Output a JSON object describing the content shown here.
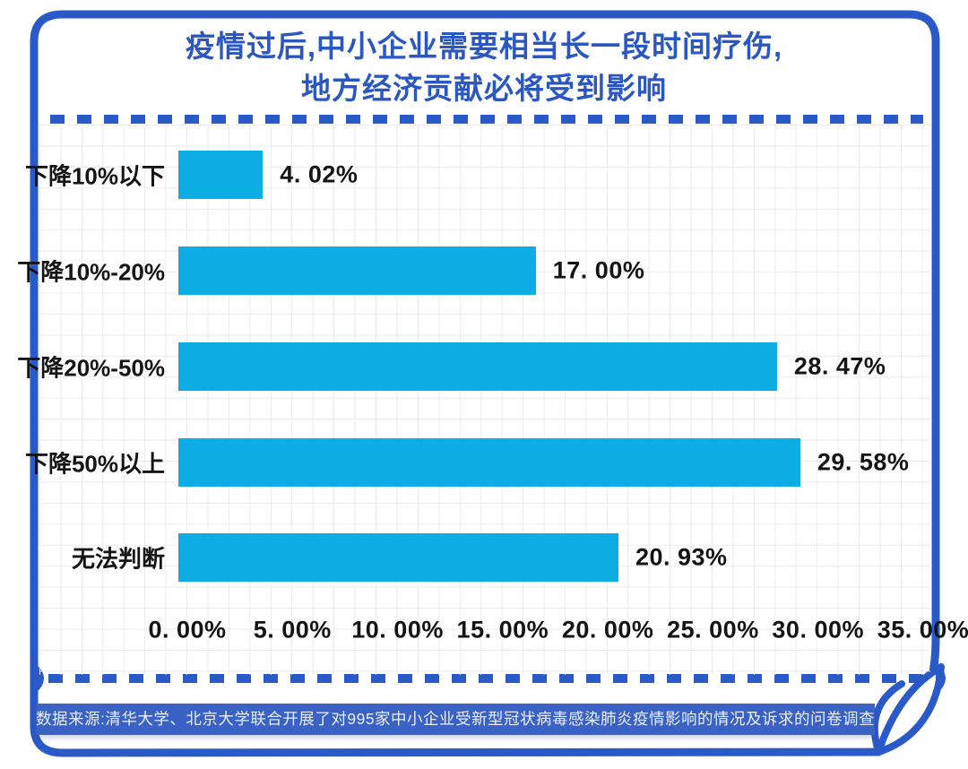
{
  "header": {
    "title_lines": [
      "疫情过后,中小企业需要相当长一段时间疗伤,",
      "地方经济贡献必将受到影响"
    ]
  },
  "footer": {
    "source_text": "数据来源:清华大学、北京大学联合开展了对995家中小企业受新型冠状病毒感染肺炎疫情影响的情况及诉求的问卷调查"
  },
  "colors": {
    "frame_blue": "#2a5ac8",
    "title_blue": "#2b57c0",
    "bar_cyan": "#0eace4",
    "footer_bar_blue": "#3a62c4",
    "grid_line_gray": "#e9eceb",
    "label_black": "#141414"
  },
  "chart_data": {
    "type": "bar",
    "orientation": "horizontal",
    "title": "疫情过后,中小企业需要相当长一段时间疗伤, 地方经济贡献必将受到影响",
    "categories": [
      "下降10%以下",
      "下降10%-20%",
      "下降20%-50%",
      "下降50%以上",
      "无法判断"
    ],
    "values": [
      4.02,
      17.0,
      28.47,
      29.58,
      20.93
    ],
    "value_labels": [
      "4. 02%",
      "17. 00%",
      "28. 47%",
      "29. 58%",
      "20. 93%"
    ],
    "x_tick_values": [
      0,
      5,
      10,
      15,
      20,
      25,
      30,
      35
    ],
    "x_tick_labels": [
      "0. 00%",
      "5. 00%",
      "10. 00%",
      "15. 00%",
      "20. 00%",
      "25. 00%",
      "30. 00%",
      "35. 00%"
    ],
    "xlim": [
      0,
      35
    ],
    "grid": true,
    "legend": false,
    "source": "数据来源:清华大学、北京大学联合开展了对995家中小企业受新型冠状病毒感染肺炎疫情影响的情况及诉求的问卷调查"
  }
}
